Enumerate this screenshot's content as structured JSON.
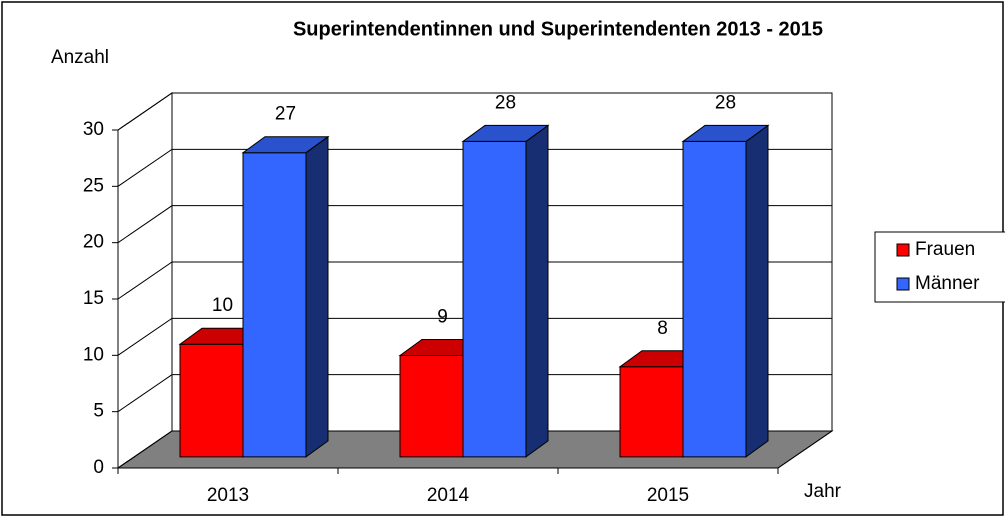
{
  "chart_data": {
    "type": "bar3d",
    "title": "Superintendentinnen und Superintendenten 2013 - 2015",
    "y_label": "Anzahl",
    "x_label": "Jahr",
    "categories": [
      "2013",
      "2014",
      "2015"
    ],
    "series": [
      {
        "name": "Frauen",
        "color": "#ff0000",
        "values": [
          10,
          9,
          8
        ]
      },
      {
        "name": "Männer",
        "color": "#3366ff",
        "values": [
          27,
          28,
          28
        ]
      }
    ],
    "ylim": [
      0,
      30
    ],
    "yticks": [
      0,
      5,
      10,
      15,
      20,
      25,
      30
    ],
    "grid": true,
    "legend": "right"
  }
}
